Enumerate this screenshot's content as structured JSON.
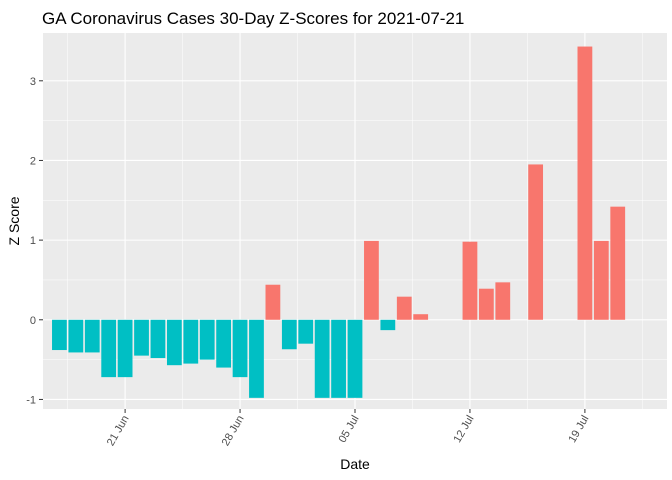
{
  "chart_data": {
    "type": "bar",
    "title": "GA Coronavirus Cases 30-Day Z-Scores for 2021-07-21",
    "xlabel": "Date",
    "ylabel": "Z Score",
    "x_ticks": [
      "21 Jun",
      "28 Jun",
      "05 Jul",
      "12 Jul",
      "19 Jul"
    ],
    "y_ticks": [
      "-1",
      "0",
      "1",
      "2",
      "3"
    ],
    "ylim": [
      -1.12,
      3.6
    ],
    "xlim": [
      "2021-06-16",
      "2021-07-24"
    ],
    "grid": true,
    "legend": "none",
    "colors": {
      "negative": "#00BFC4",
      "positive": "#F8766D",
      "panel": "#EBEBEB",
      "grid": "#FFFFFF"
    },
    "bars": [
      {
        "date": "2021-06-17",
        "value": -0.38
      },
      {
        "date": "2021-06-18",
        "value": -0.41
      },
      {
        "date": "2021-06-19",
        "value": -0.41
      },
      {
        "date": "2021-06-20",
        "value": -0.72
      },
      {
        "date": "2021-06-21",
        "value": -0.72
      },
      {
        "date": "2021-06-22",
        "value": -0.45
      },
      {
        "date": "2021-06-23",
        "value": -0.48
      },
      {
        "date": "2021-06-24",
        "value": -0.57
      },
      {
        "date": "2021-06-25",
        "value": -0.55
      },
      {
        "date": "2021-06-26",
        "value": -0.5
      },
      {
        "date": "2021-06-27",
        "value": -0.6
      },
      {
        "date": "2021-06-28",
        "value": -0.72
      },
      {
        "date": "2021-06-29",
        "value": -0.98
      },
      {
        "date": "2021-06-30",
        "value": 0.44
      },
      {
        "date": "2021-07-01",
        "value": -0.37
      },
      {
        "date": "2021-07-02",
        "value": -0.3
      },
      {
        "date": "2021-07-03",
        "value": -0.98
      },
      {
        "date": "2021-07-04",
        "value": -0.98
      },
      {
        "date": "2021-07-05",
        "value": -0.98
      },
      {
        "date": "2021-07-06",
        "value": 0.99
      },
      {
        "date": "2021-07-07",
        "value": -0.13
      },
      {
        "date": "2021-07-08",
        "value": 0.29
      },
      {
        "date": "2021-07-09",
        "value": 0.07
      },
      {
        "date": "2021-07-12",
        "value": 0.98
      },
      {
        "date": "2021-07-13",
        "value": 0.39
      },
      {
        "date": "2021-07-14",
        "value": 0.47
      },
      {
        "date": "2021-07-16",
        "value": 1.95
      },
      {
        "date": "2021-07-19",
        "value": 3.43
      },
      {
        "date": "2021-07-20",
        "value": 0.99
      },
      {
        "date": "2021-07-21",
        "value": 1.42
      }
    ]
  }
}
